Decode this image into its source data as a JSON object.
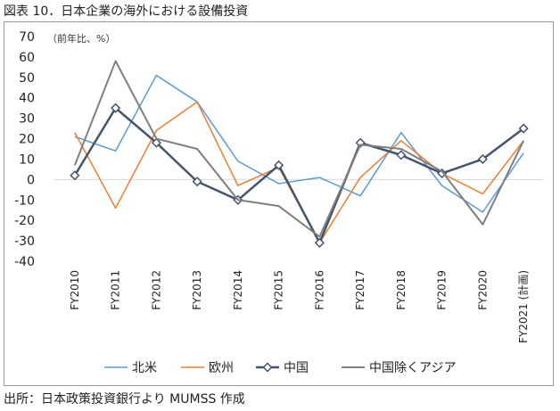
{
  "title": "図表 10．日本企業の海外における設備投資",
  "source": "出所：日本政策投資銀行より MUMSS 作成",
  "chart_data": {
    "type": "line",
    "unit_note": "（前年比、%）",
    "categories": [
      "FY2010",
      "FY2011",
      "FY2012",
      "FY2013",
      "FY2014",
      "FY2015",
      "FY2016",
      "FY2017",
      "FY2018",
      "FY2019",
      "FY2020",
      "FY2021 (計画)"
    ],
    "ylim": [
      -40,
      70
    ],
    "yticks": [
      70,
      60,
      50,
      40,
      30,
      20,
      10,
      0,
      -10,
      -20,
      -30,
      -40
    ],
    "legend_position": "bottom",
    "series": [
      {
        "name": "北米",
        "color": "#5b9bd5",
        "marker": "none",
        "width": 1.5,
        "values": [
          21,
          14,
          51,
          38,
          9,
          -2,
          1,
          -8,
          23,
          -3,
          -16,
          13
        ]
      },
      {
        "name": "欧州",
        "color": "#ed7d31",
        "marker": "none",
        "width": 1.5,
        "values": [
          23,
          -14,
          24,
          38,
          -3,
          6,
          -31,
          1,
          19,
          3,
          -7,
          19
        ]
      },
      {
        "name": "中国",
        "color": "#44546a",
        "marker": "diamond",
        "width": 2.5,
        "values": [
          2,
          35,
          18,
          -1,
          -10,
          7,
          -31,
          18,
          12,
          3,
          10,
          25
        ]
      },
      {
        "name": "中国除くアジア",
        "color": "#7f7f7f",
        "marker": "none",
        "width": 2,
        "values": [
          7,
          58,
          20,
          15,
          -10,
          -13,
          -28,
          17,
          15,
          4,
          -22,
          19
        ]
      }
    ]
  }
}
